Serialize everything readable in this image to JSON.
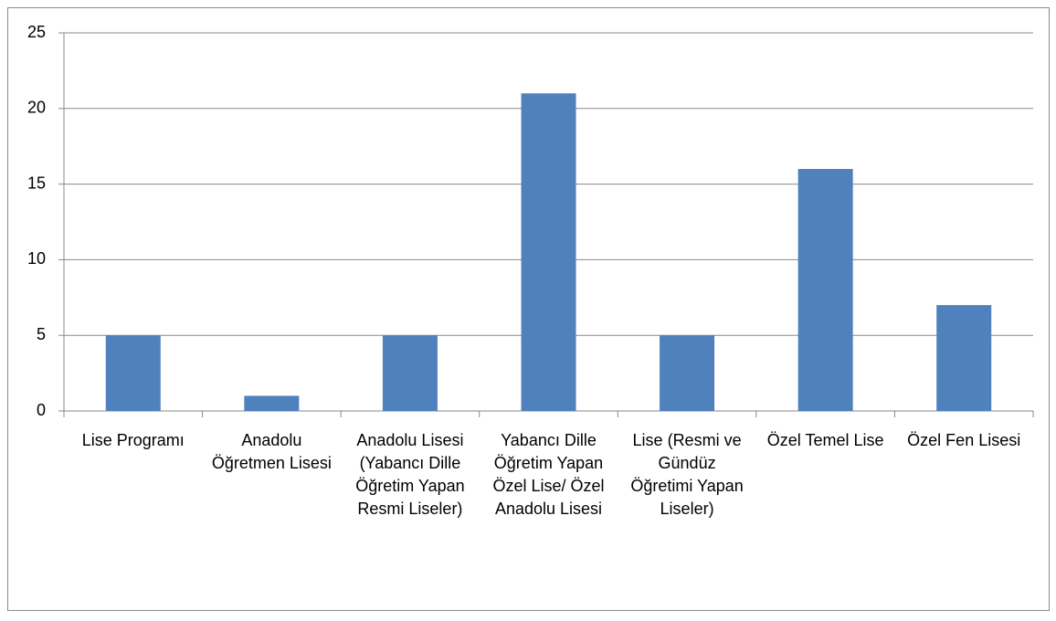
{
  "chart_data": {
    "type": "bar",
    "categories": [
      "Lise Programı",
      "Anadolu Öğretmen Lisesi",
      "Anadolu Lisesi (Yabancı Dille Öğretim Yapan Resmi Liseler)",
      "Yabancı Dille Öğretim Yapan Özel Lise/ Özel Anadolu Lisesi",
      "Lise (Resmi ve Gündüz Öğretimi Yapan Liseler)",
      "Özel Temel Lise",
      "Özel Fen Lisesi"
    ],
    "values": [
      5,
      1,
      5,
      21,
      5,
      16,
      7
    ],
    "color": "#4f81bd",
    "ylim": [
      0,
      25
    ],
    "yticks": [
      0,
      5,
      10,
      15,
      20,
      25
    ],
    "grid": true
  }
}
